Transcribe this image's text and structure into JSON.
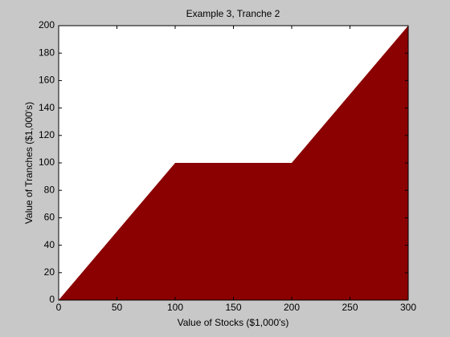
{
  "chart_data": {
    "type": "area",
    "title": "Example 3, Tranche 2",
    "xlabel": "Value of Stocks ($1,000's)",
    "ylabel": "Value of Tranches ($1,000's)",
    "x": [
      0,
      100,
      200,
      300
    ],
    "values": [
      0,
      100,
      100,
      200
    ],
    "color": "#8b0000",
    "xlim": [
      0,
      300
    ],
    "xticks": [
      0,
      50,
      100,
      150,
      200,
      250,
      300
    ],
    "ylim": [
      0,
      200
    ],
    "yticks": [
      0,
      20,
      40,
      60,
      80,
      100,
      120,
      140,
      160,
      180,
      200
    ]
  }
}
